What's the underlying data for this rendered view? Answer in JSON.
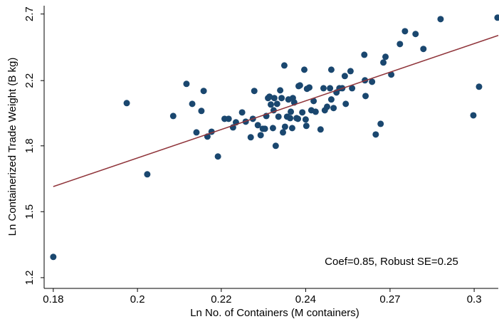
{
  "chart_data": {
    "type": "scatter",
    "x_label": "Ln No. of Containers (M containers)",
    "y_label": "Ln Containerized Trade Weight (B kg)",
    "annotation": "Coef=0.85, Robust SE=0.25",
    "xlog": true,
    "ylog": true,
    "grid": false,
    "xlim": [
      0.178,
      0.31
    ],
    "ylim": [
      1.161,
      2.77
    ],
    "xticks": [
      {
        "value": 0.18,
        "label": "0.18"
      },
      {
        "value": 0.1995,
        "label": "0.2"
      },
      {
        "value": 0.221,
        "label": "0.22"
      },
      {
        "value": 0.245,
        "label": "0.24"
      },
      {
        "value": 0.2716,
        "label": "0.27"
      },
      {
        "value": 0.301,
        "label": "0.3"
      }
    ],
    "yticks": [
      {
        "value": 1.2,
        "label": "1.2"
      },
      {
        "value": 1.47,
        "label": "1.5"
      },
      {
        "value": 1.8,
        "label": "1.8"
      },
      {
        "value": 2.2,
        "label": "2.2"
      },
      {
        "value": 2.7,
        "label": "2.7"
      }
    ],
    "series": [
      {
        "color": "#1a476f",
        "x": [
          0.18,
          0.1969,
          0.2019,
          0.2084,
          0.2118,
          0.2133,
          0.2144,
          0.2157,
          0.2163,
          0.2173,
          0.2184,
          0.2201,
          0.2219,
          0.223,
          0.2242,
          0.225,
          0.2267,
          0.2277,
          0.2291,
          0.2297,
          0.2301,
          0.2311,
          0.2319,
          0.2325,
          0.2331,
          0.2335,
          0.234,
          0.2344,
          0.2348,
          0.2354,
          0.2356,
          0.2358,
          0.2362,
          0.2366,
          0.237,
          0.2375,
          0.2379,
          0.2383,
          0.2387,
          0.2389,
          0.2395,
          0.2399,
          0.2404,
          0.2406,
          0.241,
          0.2412,
          0.2416,
          0.2423,
          0.2427,
          0.2429,
          0.2433,
          0.244,
          0.2446,
          0.245,
          0.2452,
          0.2454,
          0.2461,
          0.2467,
          0.2474,
          0.248,
          0.2495,
          0.2504,
          0.2508,
          0.2515,
          0.2524,
          0.2528,
          0.2528,
          0.2535,
          0.2544,
          0.2553,
          0.2562,
          0.257,
          0.2573,
          0.2588,
          0.2593,
          0.2632,
          0.2634,
          0.2636,
          0.2657,
          0.2669,
          0.2685,
          0.2694,
          0.2701,
          0.272,
          0.2749,
          0.2766,
          0.2802,
          0.2829,
          0.2889,
          0.3007,
          0.3028,
          0.3097
        ],
        "values": [
          1.279,
          2.053,
          1.649,
          1.973,
          2.178,
          2.048,
          1.876,
          2.004,
          2.131,
          1.852,
          1.88,
          1.742,
          1.956,
          1.956,
          1.905,
          1.935,
          1.995,
          1.939,
          1.848,
          1.956,
          2.131,
          1.918,
          1.86,
          1.897,
          1.897,
          1.973,
          2.085,
          2.094,
          2.044,
          1.901,
          2.008,
          2.085,
          1.8,
          2.048,
          1.969,
          2.135,
          2.085,
          1.876,
          2.305,
          1.909,
          1.969,
          2.076,
          1.96,
          1.999,
          1.901,
          2.085,
          2.057,
          1.96,
          1.956,
          2.163,
          2.168,
          1.995,
          2.275,
          1.952,
          1.914,
          2.145,
          2.154,
          2.008,
          2.066,
          1.999,
          1.893,
          2.149,
          2.008,
          2.03,
          2.149,
          2.076,
          2.275,
          2.022,
          2.121,
          2.149,
          2.149,
          2.231,
          2.048,
          2.265,
          2.149,
          2.382,
          2.202,
          2.098,
          2.192,
          1.864,
          1.926,
          2.326,
          2.367,
          2.241,
          2.462,
          2.561,
          2.539,
          2.425,
          2.658,
          1.977,
          2.159,
          2.67
        ]
      },
      {
        "type": "line",
        "color": "#90353b",
        "x": [
          0.18,
          0.31
        ],
        "values": [
          1.588,
          2.528
        ]
      }
    ]
  }
}
